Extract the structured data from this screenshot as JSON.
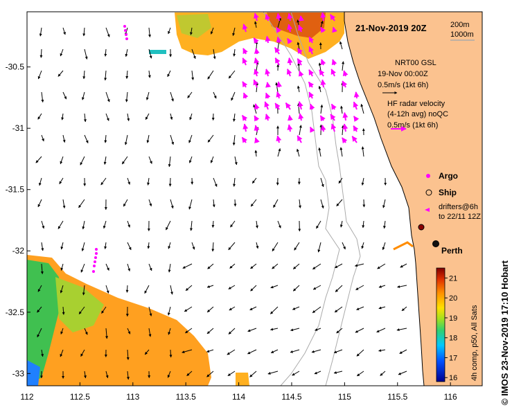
{
  "map": {
    "title": "21-Nov-2019 20Z",
    "depth_labels": [
      "200m",
      "1000m"
    ],
    "x_ticks": [
      "112",
      "112.5",
      "113",
      "113.5",
      "114",
      "114.5",
      "115",
      "115.5",
      "116"
    ],
    "y_ticks": [
      "-30.5",
      "-31",
      "-31.5",
      "-32",
      "-32.5",
      "-33"
    ],
    "lon_range": [
      112,
      116.3
    ],
    "lat_range": [
      -33.1,
      -30.05
    ]
  },
  "legend": {
    "gsl_line1": "NRT00 GSL",
    "gsl_line2": "19-Nov 00:00Z",
    "gsl_scale": "0.5m/s (1kt 6h)",
    "hf_line1": "HF radar velocity",
    "hf_line2": "(4-12h avg) noQC",
    "hf_scale": "0.5m/s (1kt 6h)",
    "argo_label": "Argo",
    "ship_label": "Ship",
    "drifters_line1": "drifters@6h",
    "drifters_line2": "to 22/11 12Z",
    "city_label": "Perth"
  },
  "colorbar": {
    "ticks": [
      "21",
      "20",
      "19",
      "18",
      "17",
      "16"
    ],
    "caption": "4h comp, p50, All Sats",
    "range": [
      15.8,
      21.5
    ]
  },
  "credit": "© IMOS 23-Nov-2019 17:10 Hobart",
  "colors": {
    "land": "#fbc28f",
    "hf_arrows": "#ff00ff",
    "coast": "#000000",
    "isobath": "#aaaaaa"
  }
}
